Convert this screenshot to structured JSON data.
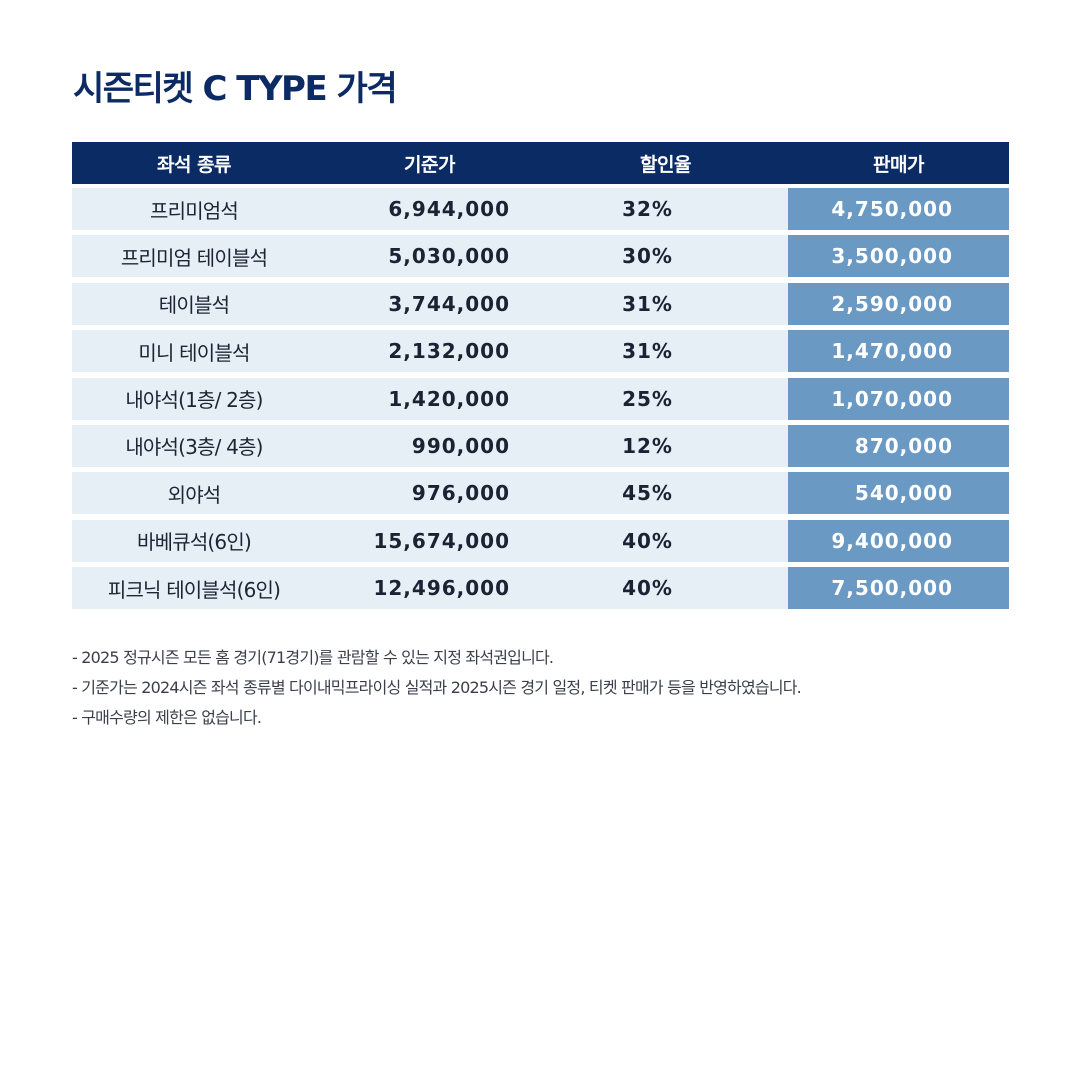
{
  "title": "시즌티켓 C TYPE 가격",
  "table": {
    "headers": [
      "좌석 종류",
      "기준가",
      "할인율",
      "판매가"
    ],
    "rows": [
      {
        "seat": "프리미엄석",
        "base": "6,944,000",
        "discount": "32%",
        "price": "4,750,000"
      },
      {
        "seat": "프리미엄 테이블석",
        "base": "5,030,000",
        "discount": "30%",
        "price": "3,500,000"
      },
      {
        "seat": "테이블석",
        "base": "3,744,000",
        "discount": "31%",
        "price": "2,590,000"
      },
      {
        "seat": "미니 테이블석",
        "base": "2,132,000",
        "discount": "31%",
        "price": "1,470,000"
      },
      {
        "seat": "내야석(1층/ 2층)",
        "base": "1,420,000",
        "discount": "25%",
        "price": "1,070,000"
      },
      {
        "seat": "내야석(3층/ 4층)",
        "base": "990,000",
        "discount": "12%",
        "price": "870,000"
      },
      {
        "seat": "외야석",
        "base": "976,000",
        "discount": "45%",
        "price": "540,000"
      },
      {
        "seat": "바베큐석(6인)",
        "base": "15,674,000",
        "discount": "40%",
        "price": "9,400,000"
      },
      {
        "seat": "피크닉 테이블석(6인)",
        "base": "12,496,000",
        "discount": "40%",
        "price": "7,500,000"
      }
    ]
  },
  "notes": [
    "- 2025 정규시즌 모든 홈 경기(71경기)를 관람할 수 있는 지정 좌석권입니다.",
    "- 기준가는 2024시즌 좌석 종류별 다이내믹프라이싱 실적과 2025시즌 경기 일정, 티켓 판매가 등을 반영하였습니다.",
    "- 구매수량의 제한은 없습니다."
  ],
  "colors": {
    "title": "#0c2a63",
    "header_bg": "#0a2b64",
    "row_bg": "#e6eef6",
    "price_bg": "#6a99c4"
  }
}
